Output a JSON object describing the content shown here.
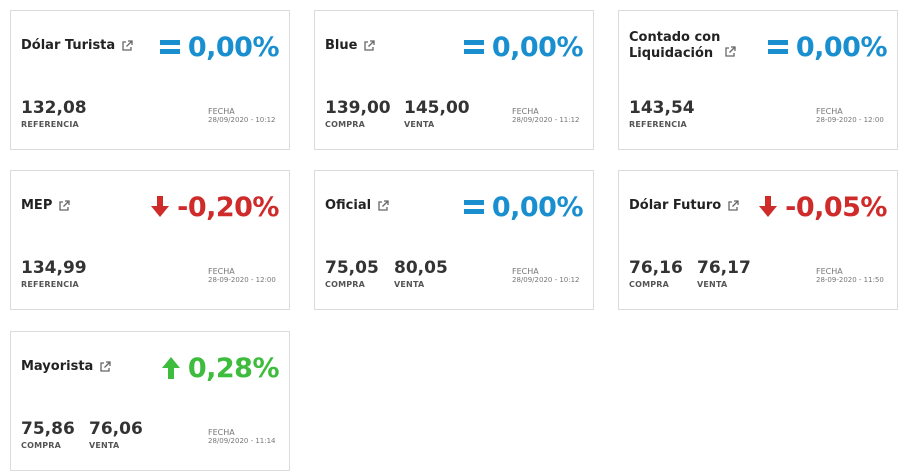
{
  "cards": [
    {
      "title": "Dólar Turista",
      "variation": "0,00%",
      "trend": "equal",
      "values": [
        {
          "value": "132,08",
          "label": "REFERENCIA"
        }
      ],
      "date_label": "FECHA",
      "date": "28/09/2020 - 10:12"
    },
    {
      "title": "Blue",
      "variation": "0,00%",
      "trend": "equal",
      "values": [
        {
          "value": "139,00",
          "label": "COMPRA"
        },
        {
          "value": "145,00",
          "label": "VENTA"
        }
      ],
      "date_label": "FECHA",
      "date": "28/09/2020 - 11:12"
    },
    {
      "title_line1": "Contado con",
      "title_line2": "Liquidación",
      "variation": "0,00%",
      "trend": "equal",
      "values": [
        {
          "value": "143,54",
          "label": "REFERENCIA"
        }
      ],
      "date_label": "FECHA",
      "date": "28-09-2020 - 12:00"
    },
    {
      "title": "MEP",
      "variation": "-0,20%",
      "trend": "down",
      "values": [
        {
          "value": "134,99",
          "label": "REFERENCIA"
        }
      ],
      "date_label": "FECHA",
      "date": "28-09-2020 - 12:00"
    },
    {
      "title": "Oficial",
      "variation": "0,00%",
      "trend": "equal",
      "values": [
        {
          "value": "75,05",
          "label": "COMPRA"
        },
        {
          "value": "80,05",
          "label": "VENTA"
        }
      ],
      "date_label": "FECHA",
      "date": "28/09/2020 - 10:12"
    },
    {
      "title": "Dólar Futuro",
      "variation": "-0,05%",
      "trend": "down",
      "values": [
        {
          "value": "76,16",
          "label": "COMPRA"
        },
        {
          "value": "76,17",
          "label": "VENTA"
        }
      ],
      "date_label": "FECHA",
      "date": "28-09-2020 - 11:50"
    },
    {
      "title": "Mayorista",
      "variation": "0,28%",
      "trend": "up",
      "values": [
        {
          "value": "75,86",
          "label": "COMPRA"
        },
        {
          "value": "76,06",
          "label": "VENTA"
        }
      ],
      "date_label": "FECHA",
      "date": "28/09/2020 - 11:14"
    }
  ],
  "colors": {
    "equal": "#1a8fd0",
    "down": "#cf2b2b",
    "up": "#3dbc3d"
  },
  "icons": {
    "equal": "equal-icon",
    "down": "arrow-down-icon",
    "up": "arrow-up-icon",
    "external": "external-link-icon"
  }
}
